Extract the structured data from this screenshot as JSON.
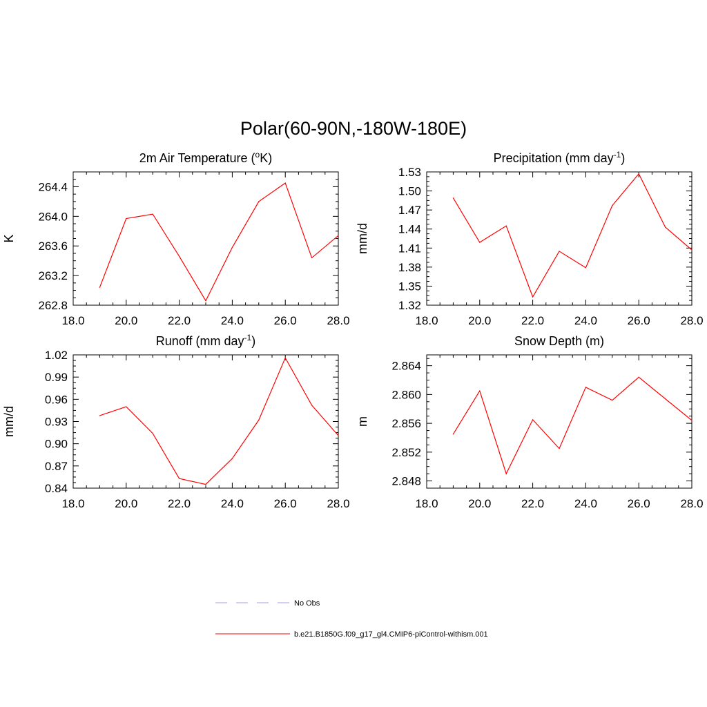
{
  "figure": {
    "title": "Polar(60-90N,-180W-180E)"
  },
  "legend": {
    "entries": [
      {
        "label": "No Obs",
        "color": "#a0a0e8",
        "style": "dashed"
      },
      {
        "label": "b.e21.B1850G.f09_g17_gl4.CMIP6-piControl-withism.001",
        "color": "#ff0000",
        "style": "solid"
      }
    ]
  },
  "chart_data": [
    {
      "type": "line",
      "title": "2m Air Temperature (",
      "title_sup_a": "o",
      "title_mid": "K)",
      "title_sup_b": "",
      "title_end": "",
      "ylabel": "K",
      "xlim": [
        18.0,
        28.0
      ],
      "ylim": [
        262.8,
        264.6
      ],
      "xticks": [
        "18.0",
        "20.0",
        "22.0",
        "24.0",
        "26.0",
        "28.0"
      ],
      "yticks": [
        "262.8",
        "263.2",
        "263.6",
        "264.0",
        "264.4"
      ],
      "ytick_values": [
        262.8,
        263.2,
        263.6,
        264.0,
        264.4
      ],
      "x": [
        19,
        20,
        21,
        22,
        23,
        24,
        25,
        26,
        27,
        28
      ],
      "series": [
        {
          "name": "b.e21.B1850G.f09_g17_gl4.CMIP6-piControl-withism.001",
          "color": "#ff0000",
          "values": [
            263.04,
            263.97,
            264.03,
            263.46,
            262.86,
            263.58,
            264.2,
            264.45,
            263.44,
            263.74
          ]
        }
      ]
    },
    {
      "type": "line",
      "title": "Precipitation (mm day",
      "title_sup_a": "-1",
      "title_mid": ")",
      "title_sup_b": "",
      "title_end": "",
      "ylabel": "mm/d",
      "xlim": [
        18.0,
        28.0
      ],
      "ylim": [
        1.32,
        1.53
      ],
      "xticks": [
        "18.0",
        "20.0",
        "22.0",
        "24.0",
        "26.0",
        "28.0"
      ],
      "yticks": [
        "1.32",
        "1.35",
        "1.38",
        "1.41",
        "1.44",
        "1.47",
        "1.50",
        "1.53"
      ],
      "ytick_values": [
        1.32,
        1.35,
        1.38,
        1.41,
        1.44,
        1.47,
        1.5,
        1.53
      ],
      "x": [
        19,
        20,
        21,
        22,
        23,
        24,
        25,
        26,
        27,
        28
      ],
      "series": [
        {
          "name": "b.e21.B1850G.f09_g17_gl4.CMIP6-piControl-withism.001",
          "color": "#ff0000",
          "values": [
            1.489,
            1.419,
            1.445,
            1.333,
            1.405,
            1.379,
            1.477,
            1.527,
            1.443,
            1.407
          ]
        }
      ]
    },
    {
      "type": "line",
      "title": "Runoff (mm day",
      "title_sup_a": "-1",
      "title_mid": ")",
      "title_sup_b": "",
      "title_end": "",
      "ylabel": "mm/d",
      "xlim": [
        18.0,
        28.0
      ],
      "ylim": [
        0.84,
        1.02
      ],
      "xticks": [
        "18.0",
        "20.0",
        "22.0",
        "24.0",
        "26.0",
        "28.0"
      ],
      "yticks": [
        "0.84",
        "0.87",
        "0.90",
        "0.93",
        "0.96",
        "0.99",
        "1.02"
      ],
      "ytick_values": [
        0.84,
        0.87,
        0.9,
        0.93,
        0.96,
        0.99,
        1.02
      ],
      "x": [
        19,
        20,
        21,
        22,
        23,
        24,
        25,
        26,
        27,
        28
      ],
      "series": [
        {
          "name": "b.e21.B1850G.f09_g17_gl4.CMIP6-piControl-withism.001",
          "color": "#ff0000",
          "values": [
            0.938,
            0.95,
            0.914,
            0.853,
            0.845,
            0.88,
            0.932,
            1.016,
            0.952,
            0.911
          ]
        }
      ]
    },
    {
      "type": "line",
      "title": "Snow Depth (m)",
      "title_sup_a": "",
      "title_mid": "",
      "title_sup_b": "",
      "title_end": "",
      "ylabel": "m",
      "xlim": [
        18.0,
        28.0
      ],
      "ylim": [
        2.847,
        2.8655
      ],
      "xticks": [
        "18.0",
        "20.0",
        "22.0",
        "24.0",
        "26.0",
        "28.0"
      ],
      "yticks": [
        "2.848",
        "2.852",
        "2.856",
        "2.860",
        "2.864"
      ],
      "ytick_values": [
        2.848,
        2.852,
        2.856,
        2.86,
        2.864
      ],
      "x": [
        19,
        20,
        21,
        22,
        23,
        24,
        25,
        26,
        27,
        28
      ],
      "series": [
        {
          "name": "b.e21.B1850G.f09_g17_gl4.CMIP6-piControl-withism.001",
          "color": "#ff0000",
          "values": [
            2.8545,
            2.8605,
            2.849,
            2.8565,
            2.8525,
            2.861,
            2.8592,
            2.8624,
            2.8594,
            2.8564
          ]
        }
      ]
    }
  ]
}
